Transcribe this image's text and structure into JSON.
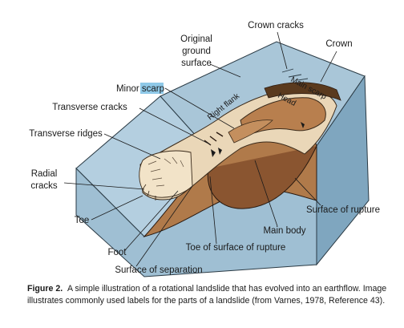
{
  "labels": {
    "crown_cracks": "Crown cracks",
    "crown": "Crown",
    "original_ground_surface": [
      "Original",
      "ground",
      "surface"
    ],
    "minor_scarp": "Minor scarp",
    "main_scarp": "Main scarp",
    "head": "Head",
    "right_flank": "Right flank",
    "transverse_cracks": "Transverse cracks",
    "transverse_ridges": "Transverse ridges",
    "radial_cracks": [
      "Radial",
      "cracks"
    ],
    "toe": "Toe",
    "surface_of_rupture": "Surface of rupture",
    "main_body": "Main body",
    "foot": "Foot",
    "toe_of_surface_of_rupture": "Toe of surface of rupture",
    "surface_of_separation": "Surface of separation"
  },
  "caption": {
    "figure_label": "Figure 2.",
    "text": "A simple illustration of a rotational landslide that has evolved into an earthflow. Image illustrates commonly used labels for the parts of a landslide (from Varnes, 1978, Reference 43)."
  },
  "colors": {
    "sky_surface": "#a9c6d8",
    "block_front": "#9fbfd3",
    "block_side": "#7fa6bf",
    "ground_brown": "#b07a4a",
    "dark_brown": "#7a4a26",
    "slide_tan": "#ead7b8",
    "highlight": "#8fc9e8"
  }
}
